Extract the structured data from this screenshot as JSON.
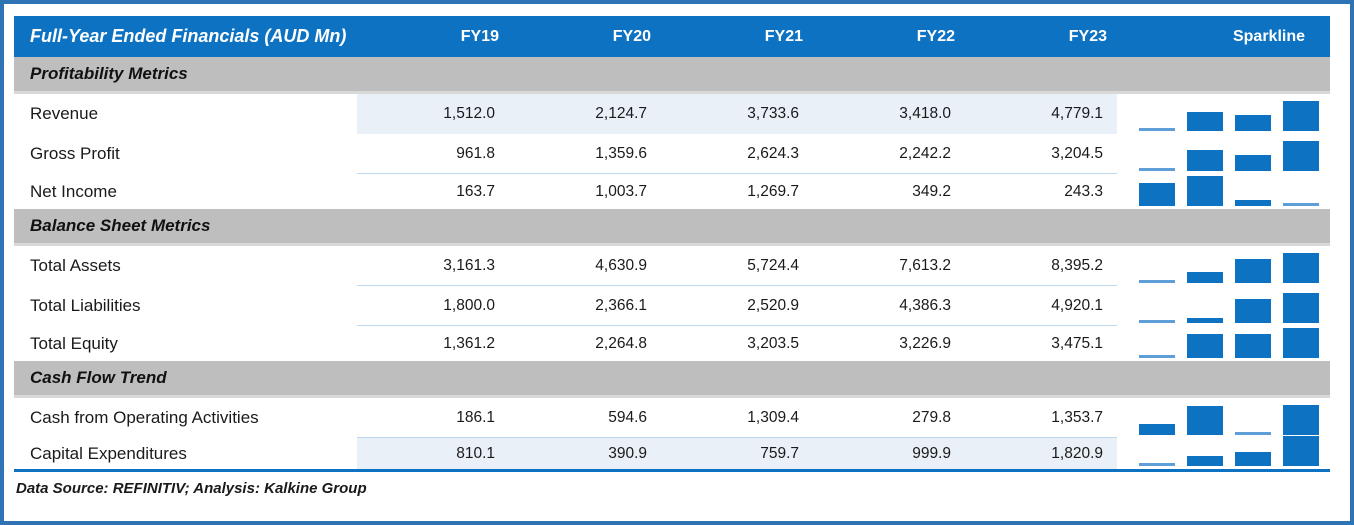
{
  "header": {
    "title": "Full-Year Ended Financials (AUD Mn)",
    "year_columns": [
      "FY19",
      "FY20",
      "FY21",
      "FY22",
      "FY23"
    ],
    "sparkline_column": "Sparkline"
  },
  "footer": {
    "text": "Data Source: REFINITIV; Analysis: Kalkine Group"
  },
  "colors": {
    "blue": "#0E72C2",
    "border": "#2E74B5",
    "gray": "#BEBEBE",
    "grayedge": "#D8D8D8",
    "band": "#EAF0F8",
    "sep": "#BDD7EE",
    "hair": "#5D9FD6"
  },
  "chart_data": {
    "type": "table",
    "title": "Full-Year Ended Financials (AUD Mn)",
    "columns": [
      "FY19",
      "FY20",
      "FY21",
      "FY22",
      "FY23"
    ],
    "sections": [
      {
        "name": "Profitability Metrics",
        "rows": [
          {
            "metric": "Revenue",
            "values": [
              1512.0,
              2124.7,
              3733.6,
              3418.0,
              4779.1
            ]
          },
          {
            "metric": "Gross Profit",
            "values": [
              961.8,
              1359.6,
              2624.3,
              2242.2,
              3204.5
            ]
          },
          {
            "metric": "Net Income",
            "values": [
              163.7,
              1003.7,
              1269.7,
              349.2,
              243.3
            ]
          }
        ]
      },
      {
        "name": "Balance Sheet Metrics",
        "rows": [
          {
            "metric": "Total Assets",
            "values": [
              3161.3,
              4630.9,
              5724.4,
              7613.2,
              8395.2
            ]
          },
          {
            "metric": "Total Liabilities",
            "values": [
              1800.0,
              2366.1,
              2520.9,
              4386.3,
              4920.1
            ]
          },
          {
            "metric": "Total Equity",
            "values": [
              1361.2,
              2264.8,
              3203.5,
              3226.9,
              3475.1
            ]
          }
        ]
      },
      {
        "name": "Cash Flow Trend",
        "rows": [
          {
            "metric": "Cash from Operating Activities",
            "values": [
              186.1,
              594.6,
              1309.4,
              279.8,
              1353.7
            ]
          },
          {
            "metric": "Capital Expenditures",
            "values": [
              810.1,
              390.9,
              759.7,
              999.9,
              1820.9
            ]
          }
        ]
      }
    ],
    "sparkline": {
      "type": "bar",
      "bars_per_row": 4,
      "covers_years": [
        "FY20",
        "FY21",
        "FY22",
        "FY23"
      ],
      "scaling": "per-row min-max (minimum renders as hairline)"
    }
  }
}
